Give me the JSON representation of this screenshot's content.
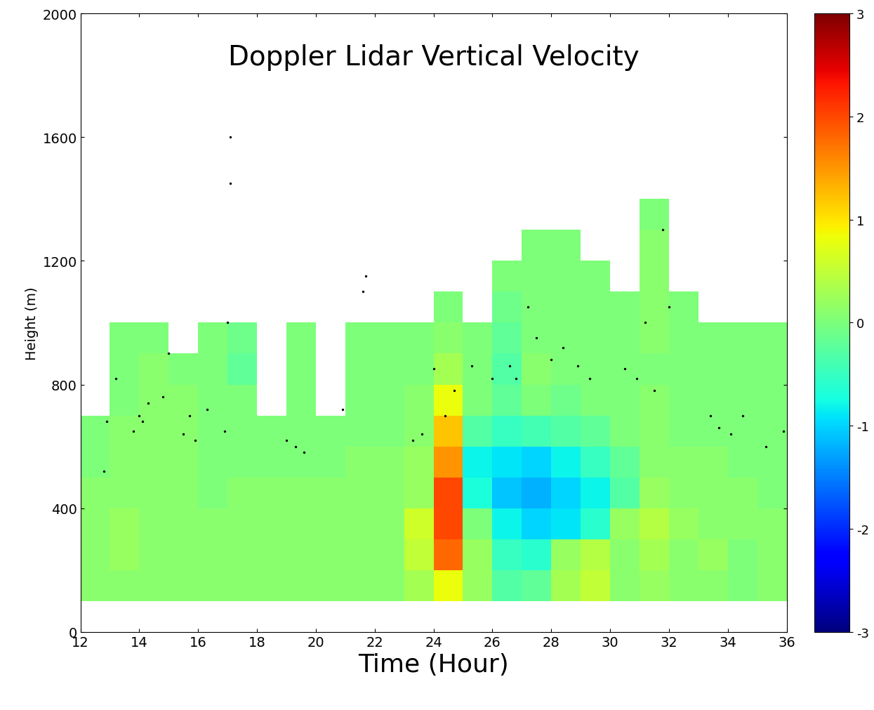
{
  "chart_data": {
    "type": "heatmap",
    "title": "Doppler Lidar Vertical Velocity",
    "x_label": "Time (Hour)",
    "y_label": "Height (m)",
    "xlim": [
      12,
      36
    ],
    "xticks": [
      12,
      14,
      16,
      18,
      20,
      22,
      24,
      26,
      28,
      30,
      32,
      34,
      36
    ],
    "ylim": [
      0,
      2000
    ],
    "yticks": [
      0,
      400,
      800,
      1200,
      1600,
      2000
    ],
    "color": "jet",
    "x_edges": [
      12,
      13,
      14,
      15,
      16,
      17,
      18,
      19,
      20,
      21,
      22,
      23,
      24,
      25,
      26,
      27,
      28,
      29,
      30,
      31,
      32,
      33,
      34,
      35,
      36
    ],
    "y_edges": [
      100,
      200,
      300,
      400,
      500,
      600,
      700,
      800,
      900,
      1000,
      1100,
      1200,
      1300,
      1400
    ],
    "cells": [
      [
        0.1,
        0.1,
        0.1,
        0.1,
        0.1,
        0.1,
        0.1,
        0.1,
        0.1,
        0.1,
        0.1,
        0.3,
        0.8,
        0.2,
        -0.3,
        -0.2,
        0.3,
        0.5,
        0.1,
        0.2,
        0.1,
        0.1,
        0.0,
        0.1
      ],
      [
        0.1,
        0.2,
        0.1,
        0.1,
        0.1,
        0.1,
        0.1,
        0.1,
        0.1,
        0.1,
        0.1,
        0.5,
        1.8,
        0.2,
        -0.5,
        -0.6,
        0.2,
        0.4,
        0.1,
        0.3,
        0.1,
        0.2,
        0.0,
        0.1
      ],
      [
        0.1,
        0.2,
        0.1,
        0.1,
        0.1,
        0.1,
        0.1,
        0.1,
        0.1,
        0.1,
        0.1,
        0.6,
        2.0,
        0.0,
        -0.8,
        -1.0,
        -0.9,
        -0.6,
        0.2,
        0.4,
        0.2,
        0.1,
        0.1,
        0.1
      ],
      [
        0.1,
        0.1,
        0.1,
        0.1,
        0.0,
        0.1,
        0.1,
        0.1,
        0.1,
        0.1,
        0.1,
        0.2,
        2.0,
        -0.7,
        -1.1,
        -1.2,
        -1.0,
        -0.8,
        -0.3,
        0.2,
        0.1,
        0.1,
        0.1,
        0.0
      ],
      [
        0.0,
        0.1,
        0.1,
        0.1,
        0.0,
        0.0,
        0.0,
        0.0,
        0.0,
        0.1,
        0.1,
        0.2,
        1.5,
        -0.8,
        -0.9,
        -1.0,
        -0.8,
        -0.5,
        -0.2,
        0.1,
        0.1,
        0.1,
        0.0,
        0.0
      ],
      [
        0.0,
        0.1,
        0.1,
        0.1,
        0.0,
        0.0,
        0.0,
        0.0,
        0.0,
        0.0,
        0.0,
        0.1,
        1.2,
        -0.3,
        -0.5,
        -0.4,
        -0.3,
        -0.2,
        0.0,
        0.1,
        0.0,
        0.0,
        0.0,
        0.0
      ],
      [
        null,
        0.0,
        0.1,
        0.1,
        0.0,
        0.0,
        null,
        0.0,
        null,
        0.0,
        0.0,
        0.1,
        0.8,
        0.0,
        -0.2,
        0.0,
        -0.1,
        0.0,
        0.0,
        0.1,
        0.0,
        0.0,
        0.0,
        0.0
      ],
      [
        null,
        0.0,
        0.1,
        0.0,
        0.0,
        -0.2,
        null,
        0.0,
        null,
        0.0,
        0.0,
        0.0,
        0.3,
        0.0,
        -0.3,
        0.1,
        0.0,
        0.0,
        0.0,
        0.0,
        0.0,
        0.0,
        0.0,
        0.0
      ],
      [
        null,
        0.0,
        0.0,
        null,
        0.0,
        -0.1,
        null,
        0.0,
        null,
        0.0,
        0.0,
        0.0,
        0.1,
        0.0,
        -0.2,
        0.0,
        0.0,
        0.0,
        0.0,
        0.1,
        0.0,
        0.0,
        0.0,
        0.0
      ],
      [
        null,
        null,
        null,
        null,
        null,
        null,
        null,
        null,
        null,
        null,
        null,
        null,
        0.0,
        null,
        -0.1,
        0.0,
        0.0,
        0.0,
        0.0,
        0.1,
        0.0,
        null,
        null,
        null
      ],
      [
        null,
        null,
        null,
        null,
        null,
        null,
        null,
        null,
        null,
        null,
        null,
        null,
        null,
        null,
        0.0,
        0.0,
        0.0,
        0.0,
        null,
        0.1,
        null,
        null,
        null,
        null
      ],
      [
        null,
        null,
        null,
        null,
        null,
        null,
        null,
        null,
        null,
        null,
        null,
        null,
        null,
        null,
        null,
        0.0,
        0.0,
        null,
        null,
        0.1,
        null,
        null,
        null,
        null
      ],
      [
        null,
        null,
        null,
        null,
        null,
        null,
        null,
        null,
        null,
        null,
        null,
        null,
        null,
        null,
        null,
        null,
        null,
        null,
        null,
        0.0,
        null,
        null,
        null,
        null
      ]
    ],
    "colorbar": {
      "range": [
        -3,
        3
      ],
      "ticks": [
        -3,
        -2,
        -1,
        0,
        1,
        2,
        3
      ]
    },
    "points": {
      "color": "black",
      "marker": "point",
      "x": [
        12.8,
        12.9,
        13.2,
        13.8,
        14.0,
        14.1,
        14.3,
        14.8,
        15.0,
        15.5,
        15.7,
        15.9,
        16.3,
        16.9,
        17.0,
        17.1,
        17.1,
        19.0,
        19.3,
        19.6,
        20.9,
        21.6,
        21.7,
        23.3,
        23.6,
        24.0,
        24.4,
        24.7,
        25.3,
        26.0,
        26.6,
        26.8,
        27.2,
        27.5,
        28.0,
        28.4,
        28.9,
        29.3,
        30.5,
        30.9,
        31.2,
        31.5,
        31.8,
        32.0,
        33.4,
        33.7,
        34.1,
        34.5,
        35.3,
        35.9
      ],
      "y": [
        520,
        680,
        820,
        650,
        700,
        680,
        740,
        760,
        900,
        640,
        700,
        620,
        720,
        650,
        1000,
        1600,
        1450,
        620,
        600,
        580,
        720,
        1100,
        1150,
        620,
        640,
        850,
        700,
        780,
        860,
        820,
        860,
        820,
        1050,
        950,
        880,
        920,
        860,
        820,
        850,
        820,
        1000,
        780,
        1300,
        1050,
        700,
        660,
        640,
        700,
        600,
        650
      ]
    }
  }
}
